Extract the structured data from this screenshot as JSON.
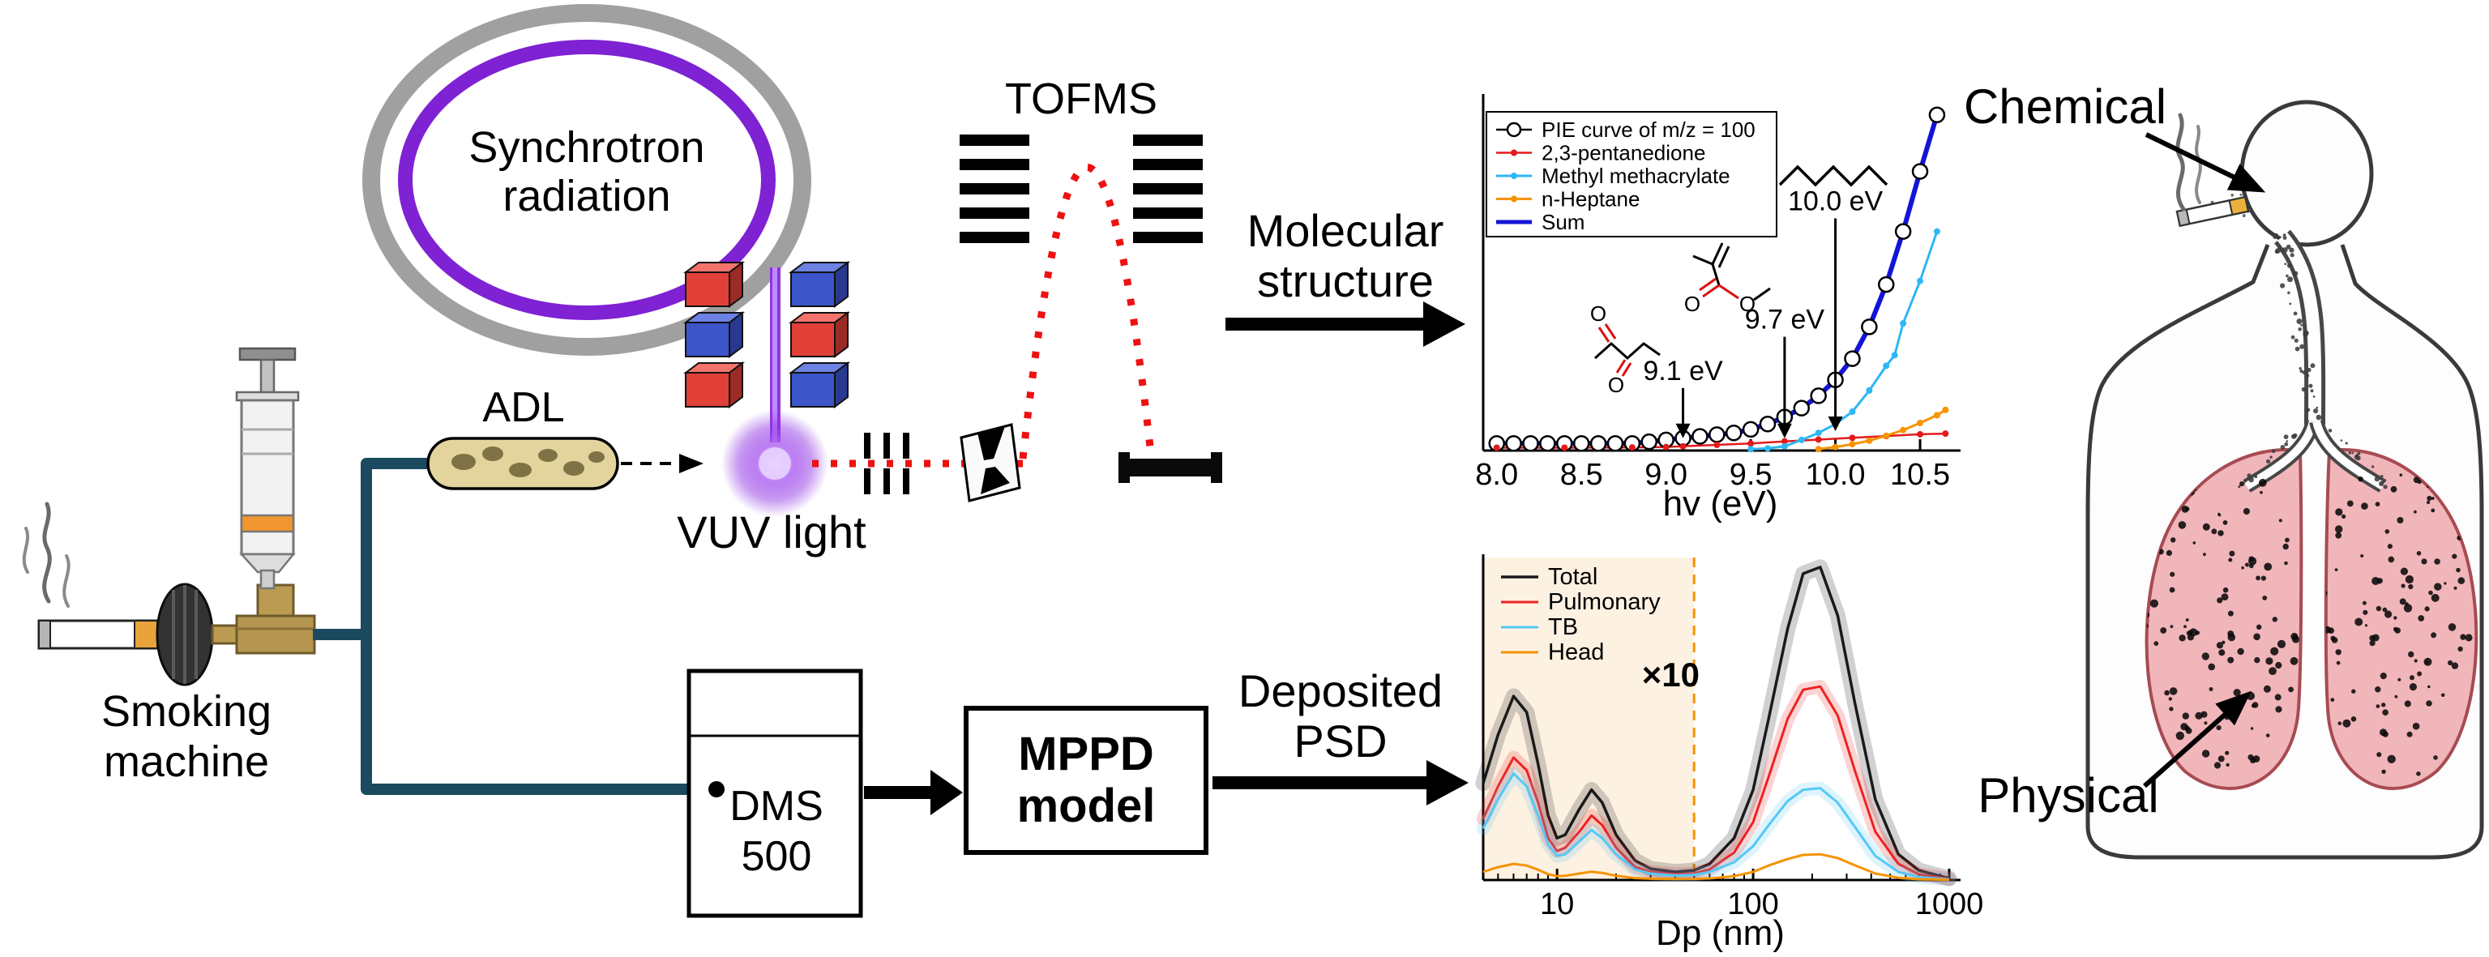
{
  "labels": {
    "synchrotron": [
      "Synchrotron",
      "radiation"
    ],
    "adl": "ADL",
    "vuv": "VUV light",
    "tofms": "TOFMS",
    "smoking": [
      "Smoking",
      "machine"
    ],
    "molecular": [
      "Molecular",
      "structure"
    ],
    "dms": [
      "DMS",
      "500"
    ],
    "mppd": [
      "MPPD",
      "model"
    ],
    "deposited": [
      "Deposited",
      "PSD"
    ],
    "chemical": "Chemical",
    "physical": "Physical",
    "atom_o": "O"
  },
  "colors": {
    "beam_purple": "#8a2be2",
    "beam_red": "#ee1111",
    "pipe_teal": "#1b4a5e",
    "accent_orange": "#f59300",
    "shade_peach": "#fdf1e2"
  },
  "chart_data": [
    {
      "id": "pie-chart",
      "type": "line",
      "xlabel": "hv (eV)",
      "ylabel": "",
      "xlim": [
        7.92,
        10.72
      ],
      "ylim": [
        0,
        1
      ],
      "xticks": [
        8.0,
        8.5,
        9.0,
        9.5,
        10.0,
        10.5
      ],
      "xtick_labels": [
        "8.0",
        "8.5",
        "9.0",
        "9.5",
        "10.0",
        "10.5"
      ],
      "legend_position": "top-left",
      "series": [
        {
          "name": "PIE curve of m/z = 100",
          "color": "#000000",
          "width": 2.5,
          "marker": "circle-open",
          "x": [
            8.0,
            8.1,
            8.2,
            8.3,
            8.4,
            8.5,
            8.6,
            8.7,
            8.8,
            8.9,
            9.0,
            9.1,
            9.2,
            9.3,
            9.4,
            9.5,
            9.6,
            9.7,
            9.8,
            9.9,
            10.0,
            10.1,
            10.2,
            10.3,
            10.4,
            10.5,
            10.6
          ],
          "y": [
            0.02,
            0.02,
            0.02,
            0.02,
            0.02,
            0.02,
            0.02,
            0.02,
            0.02,
            0.025,
            0.03,
            0.035,
            0.04,
            0.045,
            0.05,
            0.06,
            0.075,
            0.095,
            0.12,
            0.155,
            0.2,
            0.26,
            0.35,
            0.47,
            0.62,
            0.79,
            0.95
          ]
        },
        {
          "name": "2,3-pentanedione",
          "color": "#e31a1c",
          "width": 2.5,
          "marker": "dot",
          "x": [
            8.0,
            8.4,
            8.8,
            9.0,
            9.1,
            9.3,
            9.5,
            9.7,
            9.9,
            10.1,
            10.3,
            10.5,
            10.65
          ],
          "y": [
            0.008,
            0.008,
            0.009,
            0.01,
            0.012,
            0.016,
            0.02,
            0.026,
            0.031,
            0.036,
            0.041,
            0.046,
            0.048
          ]
        },
        {
          "name": "Methyl methacrylate",
          "color": "#2db7f5",
          "width": 3,
          "marker": "dot",
          "x": [
            9.5,
            9.6,
            9.7,
            9.8,
            9.9,
            10.0,
            10.1,
            10.2,
            10.3,
            10.35,
            10.4,
            10.5,
            10.6
          ],
          "y": [
            0.004,
            0.006,
            0.012,
            0.03,
            0.05,
            0.075,
            0.11,
            0.17,
            0.24,
            0.27,
            0.36,
            0.48,
            0.62
          ]
        },
        {
          "name": "n-Heptane",
          "color": "#f59300",
          "width": 3,
          "marker": "dot",
          "x": [
            9.9,
            10.0,
            10.1,
            10.2,
            10.3,
            10.4,
            10.5,
            10.6,
            10.65
          ],
          "y": [
            0.004,
            0.01,
            0.018,
            0.028,
            0.042,
            0.058,
            0.078,
            0.1,
            0.115
          ]
        },
        {
          "name": "Sum",
          "color": "#1414d8",
          "width": 6,
          "x": [
            8.0,
            8.1,
            8.2,
            8.3,
            8.4,
            8.5,
            8.6,
            8.7,
            8.8,
            8.9,
            9.0,
            9.1,
            9.2,
            9.3,
            9.4,
            9.5,
            9.6,
            9.7,
            9.8,
            9.9,
            10.0,
            10.1,
            10.2,
            10.3,
            10.4,
            10.5,
            10.6
          ],
          "y": [
            0.02,
            0.02,
            0.02,
            0.02,
            0.02,
            0.02,
            0.02,
            0.02,
            0.02,
            0.025,
            0.03,
            0.035,
            0.04,
            0.045,
            0.05,
            0.06,
            0.075,
            0.095,
            0.12,
            0.155,
            0.2,
            0.26,
            0.35,
            0.47,
            0.62,
            0.79,
            0.95
          ]
        }
      ],
      "annotations": [
        {
          "text": "9.1 eV",
          "x": 9.1,
          "text_y": 0.2,
          "arrow_to_y": 0.035
        },
        {
          "text": "9.7 eV",
          "x": 9.7,
          "text_y": 0.345,
          "arrow_to_y": 0.035
        },
        {
          "text": "10.0 eV",
          "x": 10.0,
          "text_y": 0.68,
          "arrow_to_y": 0.055
        }
      ]
    },
    {
      "id": "psd-chart",
      "type": "line",
      "xlabel": "Dp (nm)",
      "ylabel": "",
      "xscale": "log",
      "xlim": [
        4.2,
        1100
      ],
      "ylim": [
        0,
        1
      ],
      "xticks": [
        10,
        100,
        1000
      ],
      "xtick_labels": [
        "10",
        "100",
        "1000"
      ],
      "minor_log_ticks": true,
      "legend_position": "top-left",
      "shade_to": 50,
      "shade_color": "#fdf1e2",
      "dashed_x": 50,
      "dashed_color": "#f59300",
      "series": [
        {
          "name": "Total",
          "color": "#1a1a1a",
          "width": 3.5,
          "band": true,
          "x": [
            4.2,
            5,
            6,
            7,
            8,
            9,
            10,
            11,
            13,
            15,
            17,
            20,
            25,
            30,
            40,
            50,
            60,
            80,
            100,
            120,
            150,
            180,
            220,
            270,
            330,
            420,
            550,
            700,
            1000
          ],
          "y": [
            0.3,
            0.45,
            0.57,
            0.52,
            0.36,
            0.2,
            0.13,
            0.14,
            0.22,
            0.28,
            0.24,
            0.14,
            0.06,
            0.035,
            0.025,
            0.03,
            0.05,
            0.13,
            0.28,
            0.5,
            0.78,
            0.95,
            0.97,
            0.82,
            0.55,
            0.25,
            0.08,
            0.03,
            0.005
          ]
        },
        {
          "name": "Pulmonary",
          "color": "#ee2222",
          "width": 3,
          "band": true,
          "x": [
            4.2,
            5,
            6,
            7,
            8,
            9,
            10,
            11,
            13,
            15,
            17,
            20,
            25,
            30,
            40,
            50,
            60,
            80,
            100,
            120,
            150,
            180,
            220,
            270,
            330,
            420,
            550,
            700,
            1000
          ],
          "y": [
            0.19,
            0.29,
            0.38,
            0.34,
            0.24,
            0.13,
            0.09,
            0.1,
            0.15,
            0.2,
            0.17,
            0.1,
            0.04,
            0.025,
            0.018,
            0.02,
            0.033,
            0.085,
            0.18,
            0.32,
            0.5,
            0.59,
            0.6,
            0.51,
            0.34,
            0.15,
            0.05,
            0.018,
            0.003
          ]
        },
        {
          "name": "TB",
          "color": "#55c8f7",
          "width": 3,
          "band": true,
          "x": [
            4.2,
            5,
            6,
            7,
            8,
            9,
            10,
            11,
            13,
            15,
            17,
            20,
            25,
            30,
            40,
            50,
            60,
            80,
            100,
            120,
            150,
            180,
            220,
            270,
            330,
            420,
            550,
            700,
            1000
          ],
          "y": [
            0.16,
            0.25,
            0.33,
            0.29,
            0.2,
            0.11,
            0.075,
            0.08,
            0.12,
            0.155,
            0.13,
            0.08,
            0.033,
            0.02,
            0.014,
            0.016,
            0.025,
            0.055,
            0.105,
            0.17,
            0.245,
            0.28,
            0.285,
            0.24,
            0.165,
            0.075,
            0.025,
            0.009,
            0.002
          ]
        },
        {
          "name": "Head",
          "color": "#f59300",
          "width": 3,
          "x": [
            4.2,
            5,
            6,
            7,
            8,
            9,
            10,
            11,
            13,
            15,
            17,
            20,
            25,
            30,
            40,
            50,
            60,
            80,
            100,
            120,
            150,
            180,
            220,
            270,
            330,
            420,
            550,
            700,
            1000
          ],
          "y": [
            0.025,
            0.04,
            0.05,
            0.045,
            0.032,
            0.018,
            0.012,
            0.013,
            0.02,
            0.026,
            0.022,
            0.013,
            0.006,
            0.004,
            0.003,
            0.0035,
            0.005,
            0.012,
            0.025,
            0.045,
            0.065,
            0.078,
            0.08,
            0.068,
            0.046,
            0.02,
            0.007,
            0.0025,
            0.001
          ]
        }
      ],
      "annotations": [
        {
          "text": "×10",
          "x": 38,
          "text_y": 0.6,
          "color": "#f59300",
          "size": 42,
          "bold": true
        }
      ]
    }
  ]
}
